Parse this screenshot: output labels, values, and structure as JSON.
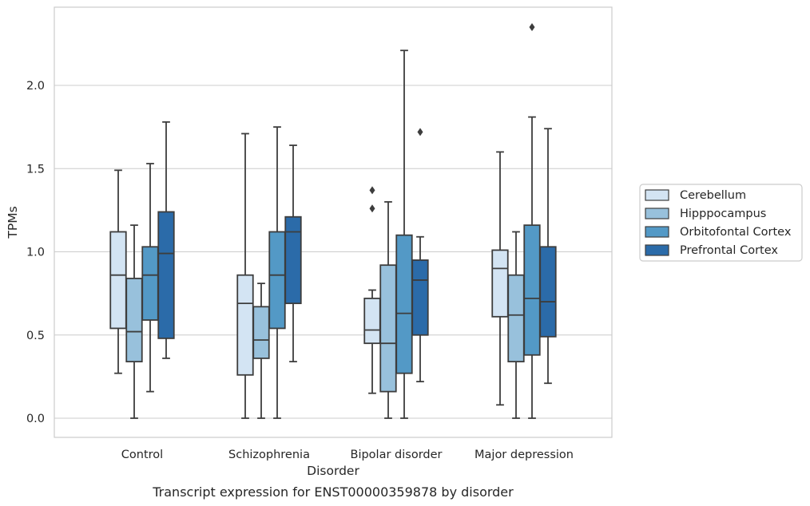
{
  "chart_data": {
    "type": "boxplot",
    "caption": "Transcript expression for ENST00000359878 by disorder",
    "xlabel": "Disorder",
    "ylabel": "TPMs",
    "ylim": [
      -0.11,
      2.48
    ],
    "yticks": [
      0.0,
      0.5,
      1.0,
      1.5,
      2.0
    ],
    "ytick_labels": [
      "0.0",
      "0.5",
      "1.0",
      "1.5",
      "2.0"
    ],
    "grid": true,
    "legend_position": "right",
    "categories": [
      "Control",
      "Schizophrenia",
      "Bipolar disorder",
      "Major depression"
    ],
    "series": [
      {
        "name": "Cerebellum",
        "color": "#d3e4f3",
        "boxes": [
          {
            "whislo": 0.27,
            "q1": 0.54,
            "med": 0.86,
            "q3": 1.12,
            "whishi": 1.49,
            "fliers": []
          },
          {
            "whislo": 0.0,
            "q1": 0.26,
            "med": 0.69,
            "q3": 0.86,
            "whishi": 1.71,
            "fliers": []
          },
          {
            "whislo": 0.15,
            "q1": 0.45,
            "med": 0.53,
            "q3": 0.72,
            "whishi": 0.77,
            "fliers": [
              1.26,
              1.37
            ]
          },
          {
            "whislo": 0.08,
            "q1": 0.61,
            "med": 0.9,
            "q3": 1.01,
            "whishi": 1.6,
            "fliers": []
          }
        ]
      },
      {
        "name": "Hipppocampus",
        "color": "#98c1dc",
        "boxes": [
          {
            "whislo": 0.0,
            "q1": 0.34,
            "med": 0.52,
            "q3": 0.84,
            "whishi": 1.16,
            "fliers": []
          },
          {
            "whislo": 0.0,
            "q1": 0.36,
            "med": 0.47,
            "q3": 0.67,
            "whishi": 0.81,
            "fliers": []
          },
          {
            "whislo": 0.0,
            "q1": 0.16,
            "med": 0.45,
            "q3": 0.92,
            "whishi": 1.3,
            "fliers": []
          },
          {
            "whislo": 0.0,
            "q1": 0.34,
            "med": 0.62,
            "q3": 0.86,
            "whishi": 1.12,
            "fliers": []
          }
        ]
      },
      {
        "name": "Orbitofontal Cortex",
        "color": "#5399c6",
        "boxes": [
          {
            "whislo": 0.16,
            "q1": 0.59,
            "med": 0.86,
            "q3": 1.03,
            "whishi": 1.53,
            "fliers": []
          },
          {
            "whislo": 0.0,
            "q1": 0.54,
            "med": 0.86,
            "q3": 1.12,
            "whishi": 1.75,
            "fliers": []
          },
          {
            "whislo": 0.0,
            "q1": 0.27,
            "med": 0.63,
            "q3": 1.1,
            "whishi": 2.21,
            "fliers": []
          },
          {
            "whislo": 0.0,
            "q1": 0.38,
            "med": 0.72,
            "q3": 1.16,
            "whishi": 1.81,
            "fliers": [
              2.35
            ]
          }
        ]
      },
      {
        "name": "Prefrontal Cortex",
        "color": "#2b6ba9",
        "boxes": [
          {
            "whislo": 0.36,
            "q1": 0.48,
            "med": 0.99,
            "q3": 1.24,
            "whishi": 1.78,
            "fliers": []
          },
          {
            "whislo": 0.34,
            "q1": 0.69,
            "med": 1.12,
            "q3": 1.21,
            "whishi": 1.64,
            "fliers": []
          },
          {
            "whislo": 0.22,
            "q1": 0.5,
            "med": 0.83,
            "q3": 0.95,
            "whishi": 1.09,
            "fliers": [
              1.72
            ]
          },
          {
            "whislo": 0.21,
            "q1": 0.49,
            "med": 0.7,
            "q3": 1.03,
            "whishi": 1.74,
            "fliers": []
          }
        ]
      }
    ]
  }
}
